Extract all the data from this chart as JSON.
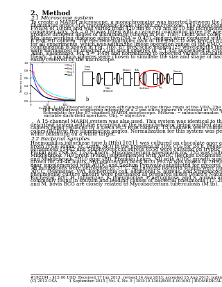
{
  "bg_color": "#ffffff",
  "text_color": "#000000",
  "title": "2.  Method",
  "section1_title": "2.1 Microscope system",
  "section1_lines": [
    "To create a MARDI microscope, a monochromator was inserted between the lamp and the",
    "illuminator optics of a transmission-mode upright microscope. The monochomator had a",
    "FWHM of 10 nm and was varied from 420 nm to 700 nm in 10 nm increments. The Abbe",
    "condenser (dry, NA = 0.9) was fitted with a carousel containing three DF aperture rings to",
    "produce different angles of illumination (shown in Fig. 1(a)). Light was collected with a dry",
    "40x long working distance objective (NA = 0.45). Images were captured with an Andor Luca-",
    "R EMCCD camera. The electron-multiplier gain of the EMCCD was kept at a constant value",
    "for all experiments, which was within the linear operation range of the EMCCD. This optical",
    "configuration is shown in Fig. 1(b). 87 grey-scale images (29 wavelengths times 3 DF rings)",
    "were normalized by imaging 2 µm silica spheres (n = 1.45) suspended in cytoseal (Richard",
    "Allan, Kalamazoo, MI, n = 1.48) and normalizing to expected values calculated using Mie",
    "theory. 2 µm silica spheres were chosen to simulate the size and shape of bacteria and were",
    "easily resolved by the microscope."
  ],
  "fig_caption_lines": [
    "Fig. 1. (a) Theoretical collection efficiencies of the three rings of the VDA. The black outline is",
    "the unpolarized scattering intensity of a 2 µm silica sphere in cytoseal at 550 nm. (b)",
    "Schematic for the 87-channel MARDI microscope. Mchrm. = monochromator, VDA =",
    "variable dark-field aperture, Obj. = objective."
  ],
  "section1b_lines": [
    "    A 15-channel MARDI system was also used. This system was identical to the previously",
    "described system with the exception of the monochomator being omitted and the EMCCD",
    "camera being replaced by a Leica EC3 RGB camera. 15 channels were comprised of three",
    "colors (RGB) at five illumination angles. Normalization for this system was performed by",
    "white balancing on a white target."
  ],
  "section2_title": "2.2 Bacterial samples",
  "section2_lines": [
    "Haemophilus influenzae type b (Hib) 10211 was cultured on chocolate agar and in tryptic soy",
    "broth (TSB; Fluka, St. Louis, MO) in the presence of 10% CO₂ for 24 h. Pseudomonas",
    "aeruginosa 15442 and Staphylococcus aureus 6558 were cultured on tryptic soy agar (TSA;",
    "Fluka) and TSB for 12-24 hours. Mycobacterium smegmatis mc²155 was cultured in",
    "Middlebrook 7H9 broth (Fluka) supplemented with AODC (Beckon Dickenson, Sparks MD)",
    "and Middlebrook 7H10 agar (BD, Franklin Lakes, NJ) with AODC growth supplement and",
    "grown for 24-48 hours. Mycobacterium bovis BCG 19274 was grown in 7H9 broth and 7H11",
    "agar supplemented with AODC and Sodium Pyruvate substituted for glycerol for 3-4 weeks.",
    "All incubations were performed at 37°C. All cultured bacteria strains were purchased from",
    "ATCC, (Manassas, VA). Escherichia coli, additional S. aureus, and Streptococcus",
    "pneumoniae culture smears were purchased as prepared slides (Ward's Natural Science,",
    "Rochester, NY). H. influenzae, S. pneumoniae, P. aeruginosa, and S. aureus are species",
    "commonly found in sputum and leading causes of bacterial pneumonia [17–20]. M. smegmatis",
    "and M. bovis BCG are closely related to Mycobacterium tuberculosis (M.tb)."
  ],
  "footer_line1": "#192294 - $15.00 USD  Received 17 Jun 2013; revised 14 Aug 2013; accepted 15 Aug 2013; published 20 Aug 2013",
  "footer_line2": "(C) 2013 OSA          1 September 2013 | Vol. 4, No. 9 | DOI:10.1364/BOE.4.001692 | BIOMEDICAL OPTICS EXPRESS  1694",
  "ml": 0.138,
  "mr": 0.975,
  "fs_title": 6.8,
  "fs_section": 5.6,
  "fs_body": 5.0,
  "fs_caption": 4.6,
  "fs_footer": 4.0,
  "lh_body": 0.0109,
  "lh_section": 0.014,
  "lh_title": 0.016
}
